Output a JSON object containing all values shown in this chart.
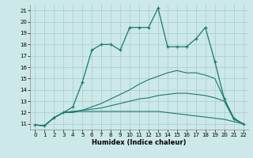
{
  "xlabel": "Humidex (Indice chaleur)",
  "xlim": [
    -0.5,
    22.5
  ],
  "ylim": [
    10.5,
    21.5
  ],
  "xticks": [
    0,
    1,
    2,
    3,
    4,
    5,
    6,
    7,
    8,
    9,
    10,
    11,
    12,
    13,
    14,
    15,
    16,
    17,
    18,
    19,
    20,
    21,
    22
  ],
  "yticks": [
    11,
    12,
    13,
    14,
    15,
    16,
    17,
    18,
    19,
    20,
    21
  ],
  "line_color": "#1a7a6e",
  "bg_color": "#cce8e8",
  "grid_color": "#a8cccc",
  "line_main": {
    "x": [
      0,
      1,
      2,
      3,
      4,
      5,
      6,
      7,
      8,
      9,
      10,
      11,
      12,
      13,
      14,
      15,
      16,
      17,
      18,
      19,
      20,
      21,
      22
    ],
    "y": [
      10.9,
      10.85,
      11.55,
      12.0,
      12.5,
      14.7,
      17.5,
      18.0,
      18.0,
      17.5,
      19.5,
      19.5,
      19.5,
      21.2,
      17.8,
      17.8,
      17.8,
      18.5,
      19.5,
      16.5,
      13.2,
      11.5,
      11.0
    ]
  },
  "line2": {
    "x": [
      0,
      1,
      2,
      3,
      4,
      5,
      6,
      7,
      8,
      9,
      10,
      11,
      12,
      13,
      14,
      15,
      16,
      17,
      18,
      19,
      20,
      21,
      22
    ],
    "y": [
      10.9,
      10.85,
      11.55,
      12.0,
      12.0,
      12.2,
      12.5,
      12.8,
      13.2,
      13.6,
      14.0,
      14.5,
      14.9,
      15.2,
      15.5,
      15.7,
      15.5,
      15.5,
      15.3,
      15.0,
      13.2,
      11.5,
      11.0
    ]
  },
  "line3": {
    "x": [
      0,
      1,
      2,
      3,
      4,
      5,
      6,
      7,
      8,
      9,
      10,
      11,
      12,
      13,
      14,
      15,
      16,
      17,
      18,
      19,
      20,
      21,
      22
    ],
    "y": [
      10.9,
      10.85,
      11.55,
      12.0,
      12.1,
      12.2,
      12.3,
      12.4,
      12.6,
      12.8,
      13.0,
      13.2,
      13.3,
      13.5,
      13.6,
      13.7,
      13.7,
      13.6,
      13.5,
      13.3,
      13.0,
      11.4,
      11.0
    ]
  },
  "line4": {
    "x": [
      0,
      1,
      2,
      3,
      4,
      5,
      6,
      7,
      8,
      9,
      10,
      11,
      12,
      13,
      14,
      15,
      16,
      17,
      18,
      19,
      20,
      21,
      22
    ],
    "y": [
      10.9,
      10.85,
      11.55,
      12.0,
      12.1,
      12.1,
      12.1,
      12.1,
      12.1,
      12.1,
      12.1,
      12.1,
      12.1,
      12.1,
      12.0,
      11.9,
      11.8,
      11.7,
      11.6,
      11.5,
      11.4,
      11.2,
      11.0
    ]
  }
}
